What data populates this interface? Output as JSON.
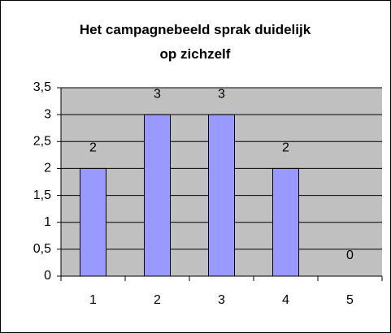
{
  "chart_data": {
    "type": "bar",
    "title": "Het campagnebeeld sprak duidelijk op zichzelf",
    "categories": [
      "1",
      "2",
      "3",
      "4",
      "5"
    ],
    "values": [
      2,
      3,
      3,
      2,
      0
    ],
    "color": "#9999ff",
    "ylim": [
      0,
      3.5
    ],
    "yticks": [
      0,
      {
        "value": 0.5,
        "label": "0,5"
      },
      1,
      {
        "value": 1.5,
        "label": "1,5"
      },
      2,
      {
        "value": 2.5,
        "label": "2,5"
      },
      3,
      {
        "value": 3.5,
        "label": "3,5"
      }
    ],
    "grid": true,
    "plot_background": "#c0c0c0"
  }
}
